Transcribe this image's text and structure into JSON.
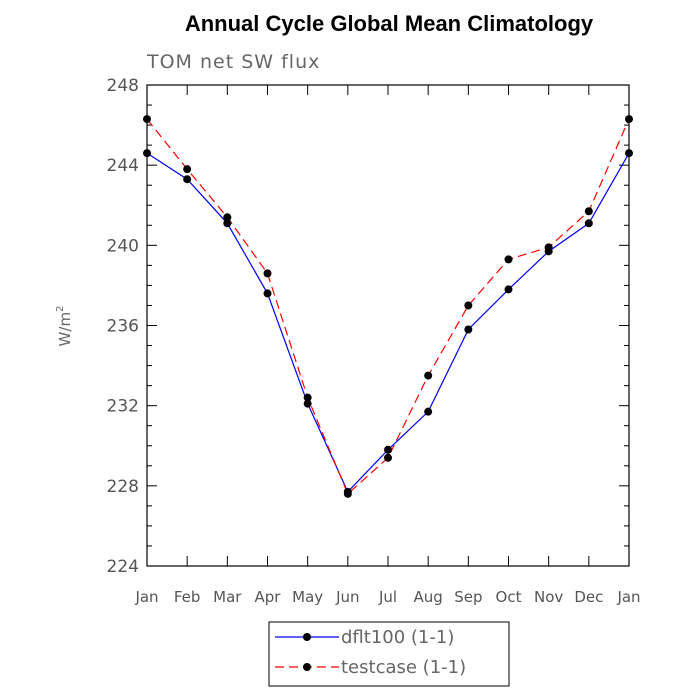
{
  "chart_data": {
    "type": "line",
    "title": "Annual Cycle Global Mean Climatology",
    "subtitle": "TOM net SW flux",
    "xlabel": "",
    "ylabel": "W/m",
    "ylabel_superscript": "2",
    "ylim": [
      224,
      248
    ],
    "yticks": [
      "224",
      "228",
      "232",
      "236",
      "240",
      "244",
      "248"
    ],
    "categories": [
      "Jan",
      "Feb",
      "Mar",
      "Apr",
      "May",
      "Jun",
      "Jul",
      "Aug",
      "Sep",
      "Oct",
      "Nov",
      "Dec",
      "Jan"
    ],
    "series": [
      {
        "name": "dflt100 (1-1)",
        "color": "#0000ff",
        "dash": "solid",
        "values": [
          244.6,
          243.3,
          241.1,
          237.6,
          232.1,
          227.7,
          229.8,
          231.7,
          235.8,
          237.8,
          239.7,
          241.1,
          244.6
        ]
      },
      {
        "name": "testcase (1-1)",
        "color": "#ff0000",
        "dash": "dashed",
        "values": [
          246.3,
          243.8,
          241.4,
          238.6,
          232.4,
          227.6,
          229.4,
          233.5,
          237.0,
          239.3,
          239.9,
          241.7,
          246.3
        ]
      }
    ]
  }
}
